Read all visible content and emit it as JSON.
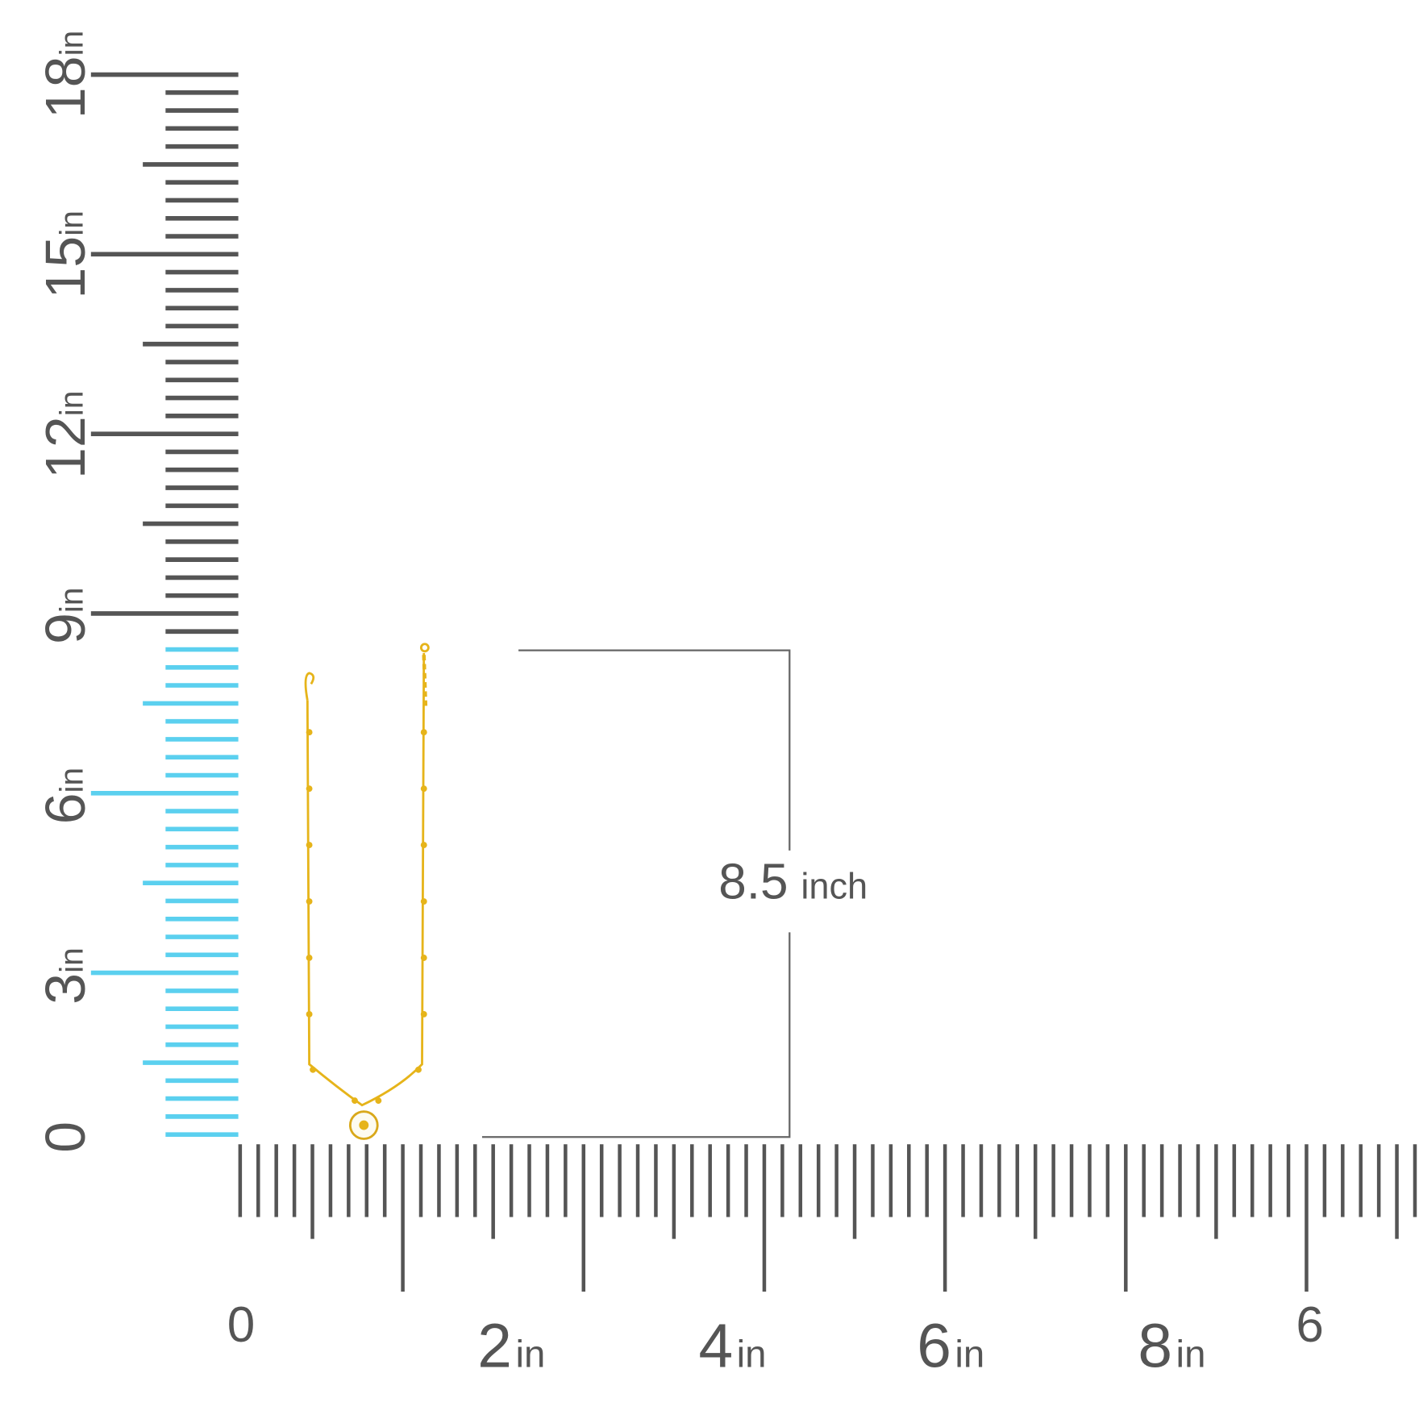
{
  "vertical_ruler": {
    "labels": [
      {
        "number": 18,
        "unit": "in"
      },
      {
        "number": 15,
        "unit": "in"
      },
      {
        "number": 12,
        "unit": "in"
      },
      {
        "number": 9,
        "unit": "in"
      },
      {
        "number": 6,
        "unit": "in"
      },
      {
        "number": 3,
        "unit": "in"
      },
      {
        "number": 0
      }
    ]
  },
  "horizontal_ruler": {
    "labels": [
      {
        "number": 0
      },
      {
        "number": 2,
        "unit": "in"
      },
      {
        "number": 4,
        "unit": "in"
      },
      {
        "number": 6,
        "unit": "in"
      },
      {
        "number": 8,
        "unit": "in"
      },
      {
        "number": 6
      }
    ]
  },
  "measurement": {
    "value": 8.5,
    "unit": "inch"
  }
}
